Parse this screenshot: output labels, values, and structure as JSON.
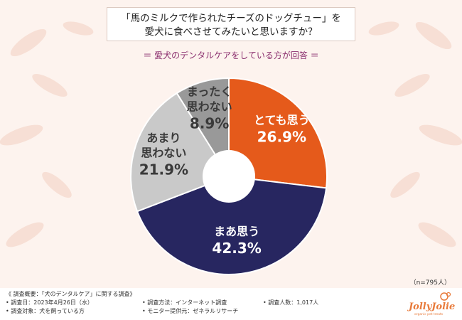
{
  "header": {
    "title_line1": "「馬のミルクで作られたチーズのドッグチュー」を",
    "title_line2": "愛犬に食べさせてみたいと思いますか？",
    "subtitle": "＝ 愛犬のデンタルケアをしている方が回答 ＝"
  },
  "chart_data": {
    "type": "pie",
    "donut": true,
    "categories": [
      "とても思う",
      "まあ思う",
      "あまり思わない",
      "まったく思わない"
    ],
    "values": [
      26.9,
      42.3,
      21.9,
      8.9
    ],
    "value_labels": [
      "26.9%",
      "42.3%",
      "21.9%",
      "8.9%"
    ],
    "label_lines": [
      [
        "とても思う"
      ],
      [
        "まあ思う"
      ],
      [
        "あまり",
        "思わない"
      ],
      [
        "まったく",
        "思わない"
      ]
    ],
    "colors": [
      "#e55a1b",
      "#272660",
      "#c9c9c9",
      "#999999"
    ],
    "label_colors": [
      "#ffffff",
      "#ffffff",
      "#3a3a3a",
      "#3a3a3a"
    ],
    "start": "12 o'clock",
    "direction": "clockwise"
  },
  "sample_note": "（n=795人）",
  "footer": {
    "overview": "《 調査概要：「犬のデンタルケア」に関する調査》",
    "date": "• 調査日：2023年4月26日（水）",
    "target": "• 調査対象：犬を飼っている方",
    "method": "• 調査方法：インターネット調査",
    "provider": "• モニター提供元：ゼネラルリサーチ",
    "count": "• 調査人数：1,017人"
  },
  "logo": {
    "text": "JollyJolie",
    "tagline": "organic pet treats",
    "color": "#e87a3a"
  },
  "colors": {
    "background": "#fdf3ee",
    "subtitle": "#8b2f6e"
  }
}
